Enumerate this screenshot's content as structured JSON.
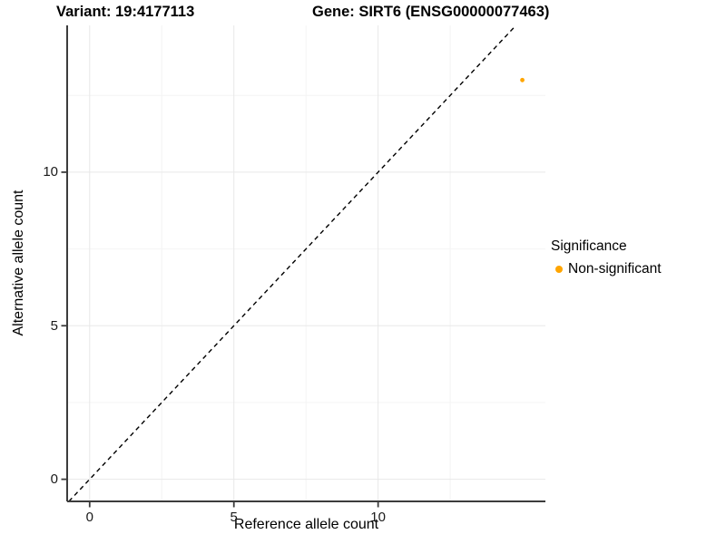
{
  "chart_data": {
    "type": "scatter",
    "title_left": "Variant: 19:4177113",
    "title_right": "Gene: SIRT6 (ENSG00000077463)",
    "xlabel": "Reference allele count",
    "ylabel": "Alternative allele count",
    "xlim": [
      -0.78,
      15.8
    ],
    "ylim": [
      -0.72,
      14.78
    ],
    "x_ticks": [
      0,
      5,
      10
    ],
    "y_ticks": [
      0,
      5,
      10
    ],
    "x_minor_gridlines": [
      2.5,
      7.5,
      12.5
    ],
    "y_minor_gridlines": [
      2.5,
      7.5,
      12.5
    ],
    "grid": {
      "major_color": "#E8E8E8",
      "minor_color": "#F4F4F4",
      "visible": true
    },
    "identity_line": {
      "slope": 1,
      "intercept": 0,
      "style": "dashed",
      "color": "#000000"
    },
    "series": [
      {
        "name": "Non-significant",
        "color": "#FFA500",
        "points": [
          {
            "x": 15,
            "y": 13
          }
        ]
      }
    ],
    "legend": {
      "title": "Significance",
      "position": "right",
      "items": [
        {
          "label": "Non-significant",
          "color": "#FFA500"
        }
      ]
    },
    "axis_color": "#3C3C3C",
    "tick_label_color": "#1A1A1A"
  }
}
